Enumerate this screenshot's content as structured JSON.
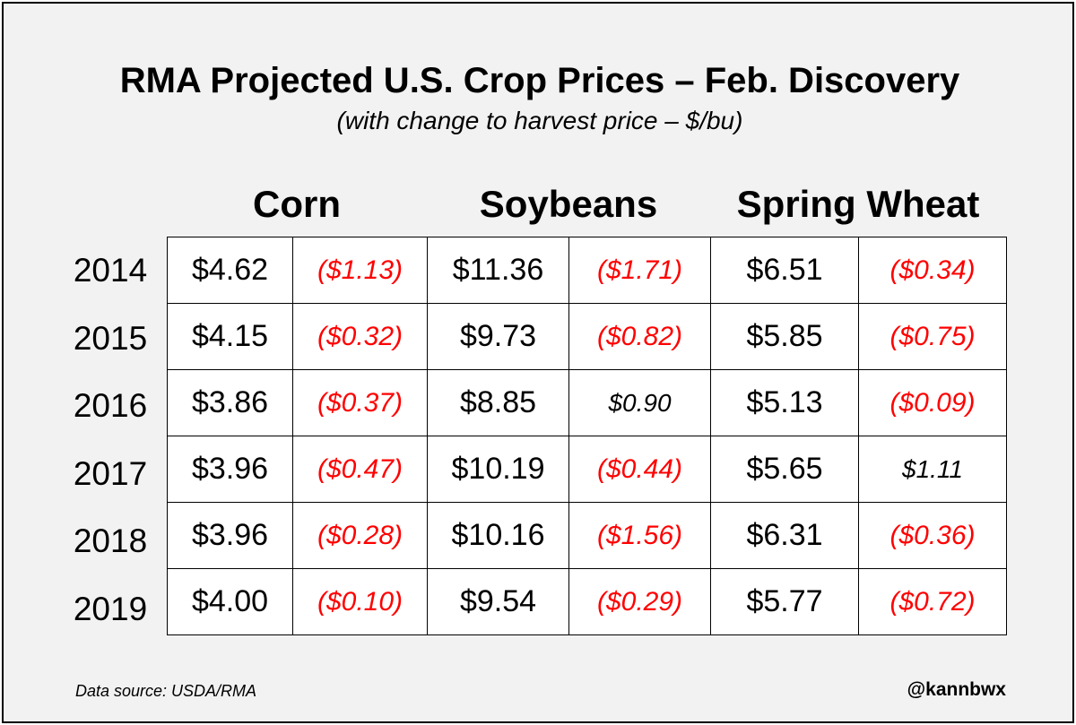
{
  "chart_data": {
    "type": "table",
    "title": "RMA Projected U.S. Crop Prices – Feb. Discovery",
    "subtitle": "(with change to harvest price – $/bu)",
    "crops": [
      "Corn",
      "Soybeans",
      "Spring Wheat"
    ],
    "years": [
      "2014",
      "2015",
      "2016",
      "2017",
      "2018",
      "2019"
    ],
    "rows": [
      [
        "$4.62",
        "($1.13)",
        "$11.36",
        "($1.71)",
        "$6.51",
        "($0.34)"
      ],
      [
        "$4.15",
        "($0.32)",
        "$9.73",
        "($0.82)",
        "$5.85",
        "($0.75)"
      ],
      [
        "$3.86",
        "($0.37)",
        "$8.85",
        "$0.90",
        "$5.13",
        "($0.09)"
      ],
      [
        "$3.96",
        "($0.47)",
        "$10.19",
        "($0.44)",
        "$5.65",
        "$1.11"
      ],
      [
        "$3.96",
        "($0.28)",
        "$10.16",
        "($1.56)",
        "$6.31",
        "($0.36)"
      ],
      [
        "$4.00",
        "($0.10)",
        "$9.54",
        "($0.29)",
        "$5.77",
        "($0.72)"
      ]
    ],
    "colors": {
      "negative": "#ff0000",
      "positive": "#000000"
    }
  },
  "footer": {
    "source": "Data source: USDA/RMA",
    "handle": "@kannbwx"
  }
}
